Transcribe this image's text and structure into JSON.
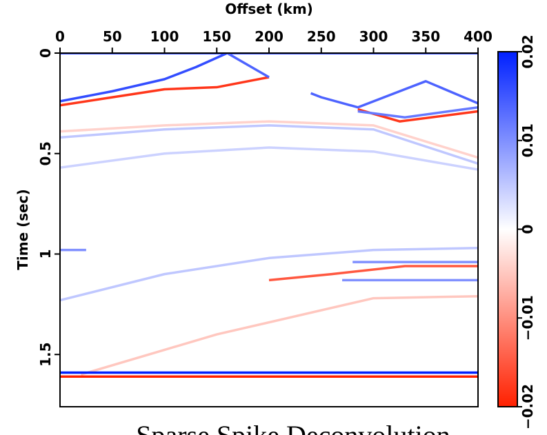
{
  "chart_data": {
    "type": "image",
    "x_label": "Offset (km)",
    "y_label": "Time (sec)",
    "caption": "Sparse Spike Deconvolution",
    "xlim": [
      0,
      400
    ],
    "xticks": [
      0,
      50,
      100,
      150,
      200,
      250,
      300,
      350,
      400
    ],
    "ylim": [
      0,
      1.76
    ],
    "yticks": [
      0,
      0.5,
      1,
      1.5
    ],
    "y_inverted": true,
    "colorbar": {
      "lim": [
        -0.02,
        0.02
      ],
      "low_color": "#ff2000",
      "mid_color": "#ffffff",
      "high_color": "#0020ff",
      "ticks": [
        {
          "value": -0.02,
          "label": "−0.02"
        },
        {
          "value": -0.01,
          "label": "−0.01"
        },
        0,
        0.01,
        0.02
      ]
    },
    "events": [
      {
        "x": [
          0,
          400
        ],
        "y": [
          0.0,
          0.0
        ],
        "amplitude": 0.02
      },
      {
        "x": [
          0,
          50,
          100,
          130,
          160
        ],
        "y": [
          0.24,
          0.19,
          0.13,
          0.07,
          0.0
        ],
        "amplitude": 0.016
      },
      {
        "x": [
          0,
          50,
          100,
          150,
          200
        ],
        "y": [
          0.26,
          0.22,
          0.18,
          0.17,
          0.12
        ],
        "amplitude": -0.018
      },
      {
        "x": [
          160,
          200
        ],
        "y": [
          0.0,
          0.12
        ],
        "amplitude": 0.014
      },
      {
        "x": [
          240,
          250,
          285,
          350,
          400
        ],
        "y": [
          0.2,
          0.22,
          0.27,
          0.14,
          0.25
        ],
        "amplitude": 0.014
      },
      {
        "x": [
          285,
          325,
          400
        ],
        "y": [
          0.28,
          0.34,
          0.29
        ],
        "amplitude": -0.018
      },
      {
        "x": [
          285,
          330,
          400
        ],
        "y": [
          0.29,
          0.32,
          0.27
        ],
        "amplitude": 0.012
      },
      {
        "x": [
          0,
          100,
          200,
          300,
          400
        ],
        "y": [
          0.42,
          0.38,
          0.36,
          0.38,
          0.55
        ],
        "amplitude": 0.005
      },
      {
        "x": [
          0,
          100,
          200,
          300,
          400
        ],
        "y": [
          0.39,
          0.36,
          0.34,
          0.36,
          0.52
        ],
        "amplitude": -0.004
      },
      {
        "x": [
          0,
          100,
          200,
          300,
          400
        ],
        "y": [
          0.57,
          0.5,
          0.47,
          0.49,
          0.58
        ],
        "amplitude": 0.004
      },
      {
        "x": [
          0,
          25
        ],
        "y": [
          0.98,
          0.98
        ],
        "amplitude": 0.01
      },
      {
        "x": [
          0,
          100,
          200,
          300,
          400
        ],
        "y": [
          1.23,
          1.1,
          1.02,
          0.98,
          0.97
        ],
        "amplitude": 0.005
      },
      {
        "x": [
          200,
          260,
          330,
          400
        ],
        "y": [
          1.13,
          1.1,
          1.06,
          1.06
        ],
        "amplitude": -0.015
      },
      {
        "x": [
          270,
          400
        ],
        "y": [
          1.13,
          1.13
        ],
        "amplitude": 0.01
      },
      {
        "x": [
          280,
          400
        ],
        "y": [
          1.04,
          1.04
        ],
        "amplitude": 0.01
      },
      {
        "x": [
          20,
          150,
          300,
          400
        ],
        "y": [
          1.6,
          1.4,
          1.22,
          1.21
        ],
        "amplitude": -0.005
      },
      {
        "x": [
          0,
          400
        ],
        "y": [
          1.59,
          1.59
        ],
        "amplitude": 0.02
      },
      {
        "x": [
          0,
          400
        ],
        "y": [
          1.61,
          1.61
        ],
        "amplitude": -0.02
      }
    ]
  }
}
